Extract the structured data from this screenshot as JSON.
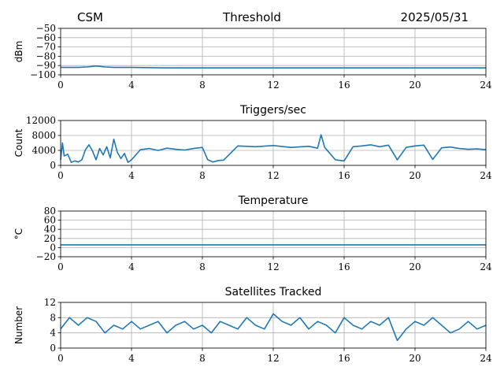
{
  "header": {
    "left": "CSM",
    "center": "Threshold",
    "right": "2025/05/31"
  },
  "colors": {
    "series": "#1f77b4",
    "grid": "#b0b0b0",
    "axis": "#000000"
  },
  "chart_data": [
    {
      "type": "line",
      "title": "",
      "ylabel": "dBm",
      "xlim": [
        0,
        24
      ],
      "ylim": [
        -100,
        -50
      ],
      "xticks": [
        0,
        4,
        8,
        12,
        16,
        20,
        24
      ],
      "yticks": [
        -50,
        -60,
        -70,
        -80,
        -90,
        -100
      ],
      "ytick_labels": [
        "−50",
        "−60",
        "−70",
        "−80",
        "−90",
        "−100"
      ],
      "grid": true,
      "series": [
        {
          "x": [
            0,
            1,
            1.5,
            2,
            2.5,
            3,
            4,
            6,
            8,
            10,
            12,
            14,
            16,
            18,
            20,
            22,
            24
          ],
          "values": [
            -92,
            -92,
            -91.5,
            -90.5,
            -91.5,
            -92,
            -92,
            -92.5,
            -92.5,
            -92.5,
            -92.5,
            -92.5,
            -92.5,
            -92.5,
            -92.5,
            -92.5,
            -92.5
          ]
        }
      ]
    },
    {
      "type": "line",
      "title": "Triggers/sec",
      "ylabel": "Count",
      "xlim": [
        0,
        24
      ],
      "ylim": [
        0,
        12000
      ],
      "xticks": [
        0,
        4,
        8,
        12,
        16,
        20,
        24
      ],
      "yticks": [
        0,
        4000,
        8000,
        12000
      ],
      "ytick_labels": [
        "0",
        "4000",
        "8000",
        "12000"
      ],
      "grid": true,
      "series": [
        {
          "x": [
            0,
            0.1,
            0.2,
            0.4,
            0.6,
            0.8,
            1.0,
            1.2,
            1.4,
            1.6,
            1.8,
            2.0,
            2.2,
            2.4,
            2.6,
            2.8,
            3.0,
            3.2,
            3.4,
            3.6,
            3.8,
            4.0,
            4.5,
            5.0,
            5.5,
            6.0,
            6.5,
            7.0,
            7.5,
            8.0,
            8.3,
            8.6,
            8.9,
            9.2,
            10,
            11,
            12,
            13,
            14,
            14.5,
            14.7,
            14.9,
            15.5,
            16,
            16.5,
            17,
            17.5,
            18,
            18.5,
            19,
            19.5,
            20,
            20.5,
            21,
            21.5,
            22,
            22.5,
            23,
            23.5,
            24
          ],
          "values": [
            1500,
            6000,
            2500,
            3000,
            800,
            1200,
            900,
            1500,
            4200,
            5500,
            3800,
            1500,
            4500,
            2800,
            5000,
            2000,
            7000,
            3500,
            1800,
            3200,
            800,
            1500,
            4200,
            4500,
            4000,
            4600,
            4300,
            4100,
            4500,
            4800,
            1500,
            900,
            1300,
            1400,
            5200,
            5000,
            5300,
            4800,
            5100,
            4600,
            8200,
            4800,
            1500,
            1200,
            5000,
            5200,
            5500,
            5000,
            5400,
            1500,
            4800,
            5200,
            5400,
            1600,
            4700,
            4900,
            4500,
            4300,
            4400,
            4200
          ]
        }
      ]
    },
    {
      "type": "line",
      "title": "Temperature",
      "ylabel": "°C",
      "xlim": [
        0,
        24
      ],
      "ylim": [
        -20,
        80
      ],
      "xticks": [
        0,
        4,
        8,
        12,
        16,
        20,
        24
      ],
      "yticks": [
        -20,
        0,
        20,
        40,
        60,
        80
      ],
      "ytick_labels": [
        "−20",
        "0",
        "20",
        "40",
        "60",
        "80"
      ],
      "grid": true,
      "series": [
        {
          "x": [
            0,
            24
          ],
          "values": [
            6,
            6
          ]
        }
      ]
    },
    {
      "type": "line",
      "title": "Satellites Tracked",
      "ylabel": "Number",
      "xlim": [
        0,
        24
      ],
      "ylim": [
        0,
        12
      ],
      "xticks": [
        0,
        4,
        8,
        12,
        16,
        20,
        24
      ],
      "yticks": [
        0,
        4,
        8,
        12
      ],
      "ytick_labels": [
        "0",
        "4",
        "8",
        "12"
      ],
      "grid": true,
      "series": [
        {
          "x": [
            0,
            0.5,
            1,
            1.5,
            2,
            2.5,
            3,
            3.5,
            4,
            4.5,
            5,
            5.5,
            6,
            6.5,
            7,
            7.5,
            8,
            8.5,
            9,
            9.5,
            10,
            10.5,
            11,
            11.5,
            12,
            12.5,
            13,
            13.5,
            14,
            14.5,
            15,
            15.5,
            16,
            16.5,
            17,
            17.5,
            18,
            18.5,
            19,
            19.5,
            20,
            20.5,
            21,
            21.5,
            22,
            22.5,
            23,
            23.5,
            24
          ],
          "values": [
            5,
            8,
            6,
            8,
            7,
            4,
            6,
            5,
            7,
            5,
            6,
            7,
            4,
            6,
            7,
            5,
            6,
            4,
            7,
            6,
            5,
            8,
            6,
            5,
            9,
            7,
            6,
            8,
            5,
            7,
            6,
            4,
            8,
            6,
            5,
            7,
            6,
            8,
            2,
            5,
            7,
            6,
            8,
            6,
            4,
            5,
            7,
            5,
            6
          ]
        }
      ]
    }
  ]
}
